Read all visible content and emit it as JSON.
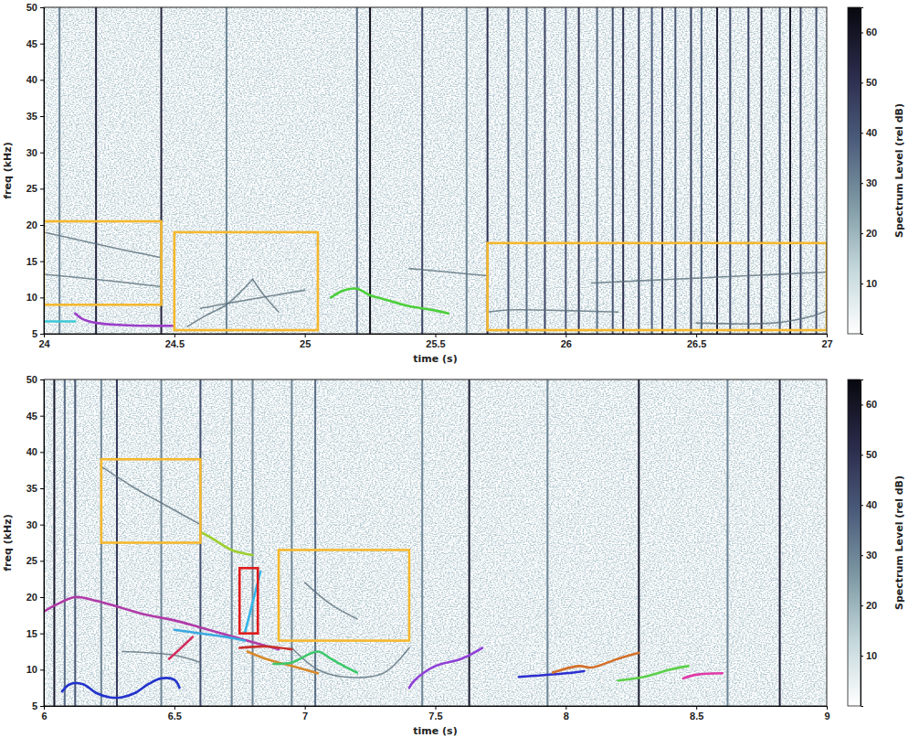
{
  "chart_data": [
    {
      "type": "spectrogram",
      "x_label": "time (s)",
      "y_label": "freq (kHz)",
      "xlim": [
        24,
        27
      ],
      "xticks": [
        24,
        24.5,
        25,
        25.5,
        26,
        26.5,
        27
      ],
      "ylim": [
        5,
        50
      ],
      "yticks": [
        5,
        10,
        15,
        20,
        25,
        30,
        35,
        40,
        45,
        50
      ],
      "colorbar": {
        "label": "Spectrum Level (rel dB)",
        "range": [
          0,
          65
        ],
        "ticks": [
          10,
          20,
          30,
          40,
          50,
          60
        ],
        "colors": [
          "#ffffff",
          "#c3d7db",
          "#7d98a3",
          "#4a5a7a",
          "#2a2a4a",
          "#08080f"
        ]
      },
      "clicks": {
        "times": [
          24.06,
          24.2,
          24.45,
          24.7,
          25.2,
          25.25,
          25.45,
          25.62,
          25.7,
          25.78,
          25.85,
          25.92,
          26.0,
          26.05,
          26.12,
          26.18,
          26.22,
          26.28,
          26.33,
          26.37,
          26.42,
          26.48,
          26.52,
          26.58,
          26.63,
          26.7,
          26.75,
          26.82,
          26.86,
          26.9,
          26.96
        ],
        "levels": [
          30,
          55,
          55,
          30,
          35,
          62,
          45,
          30,
          50,
          40,
          35,
          45,
          40,
          48,
          35,
          40,
          50,
          45,
          38,
          48,
          40,
          45,
          38,
          55,
          42,
          45,
          55,
          40,
          58,
          45,
          42
        ]
      },
      "series": [
        {
          "color": "#5a6f7c",
          "line_style": "faint",
          "x": [
            24,
            24.15,
            24.3,
            24.45
          ],
          "values": [
            19,
            17.8,
            16.6,
            15.5
          ]
        },
        {
          "color": "#5a6f7c",
          "line_style": "faint",
          "x": [
            24,
            24.2,
            24.45
          ],
          "values": [
            13.2,
            12.5,
            11.5
          ]
        },
        {
          "color": "#5a6f7c",
          "line_style": "faint",
          "x": [
            24.55,
            24.62,
            24.7,
            24.76,
            24.8
          ],
          "values": [
            6,
            7.5,
            9,
            11,
            12.5
          ]
        },
        {
          "color": "#5a6f7c",
          "line_style": "faint",
          "x": [
            24.8,
            24.85,
            24.9
          ],
          "values": [
            12.5,
            10,
            8
          ]
        },
        {
          "color": "#5a6f7c",
          "line_style": "faint",
          "x": [
            24.6,
            24.8,
            25.0
          ],
          "values": [
            8.5,
            9.8,
            11
          ]
        },
        {
          "color": "#5a6f7c",
          "line_style": "faint",
          "x": [
            25.7,
            25.8,
            26,
            26.2
          ],
          "values": [
            8,
            8.3,
            8.2,
            8
          ]
        },
        {
          "color": "#5a6f7c",
          "line_style": "faint",
          "x": [
            26.1,
            26.4,
            26.7,
            27
          ],
          "values": [
            12,
            12.5,
            13,
            13.5
          ]
        },
        {
          "color": "#5a6f7c",
          "line_style": "faint",
          "x": [
            26.5,
            26.8,
            26.95,
            27
          ],
          "values": [
            6.5,
            6.5,
            7.5,
            8.2
          ]
        },
        {
          "color": "#5a6f7c",
          "line_style": "faint",
          "x": [
            25.4,
            25.55,
            25.7
          ],
          "values": [
            14,
            13.5,
            13
          ]
        },
        {
          "color": "#3ec9d6",
          "line_style": "solid",
          "x": [
            24,
            24.06,
            24.12
          ],
          "values": [
            6.7,
            6.7,
            6.7
          ]
        },
        {
          "color": "#9b3fc9",
          "line_style": "solid",
          "x": [
            24.12,
            24.15,
            24.2,
            24.3,
            24.4,
            24.5
          ],
          "values": [
            7.8,
            7,
            6.5,
            6.2,
            6.1,
            6.1
          ]
        },
        {
          "color": "#4ccf3a",
          "line_style": "solid",
          "x": [
            25.1,
            25.15,
            25.2,
            25.25,
            25.3,
            25.4,
            25.5,
            25.55
          ],
          "values": [
            10,
            11,
            11.2,
            10.3,
            9.8,
            8.8,
            8.2,
            7.8
          ]
        }
      ],
      "boxes": [
        {
          "color": "#f5b82e",
          "x": [
            24.0,
            24.45
          ],
          "y": [
            9,
            20.5
          ]
        },
        {
          "color": "#f5b82e",
          "x": [
            24.5,
            25.05
          ],
          "y": [
            5.5,
            19
          ]
        },
        {
          "color": "#f5b82e",
          "x": [
            25.7,
            27.0
          ],
          "y": [
            5.5,
            17.5
          ]
        }
      ]
    },
    {
      "type": "spectrogram",
      "x_label": "time (s)",
      "y_label": "freq (kHz)",
      "xlim": [
        6,
        9
      ],
      "xticks": [
        6,
        6.5,
        7,
        7.5,
        8,
        8.5,
        9
      ],
      "ylim": [
        5,
        50
      ],
      "yticks": [
        5,
        10,
        15,
        20,
        25,
        30,
        35,
        40,
        45,
        50
      ],
      "colorbar": {
        "label": "Spectrum Level (rel dB)",
        "range": [
          0,
          65
        ],
        "ticks": [
          10,
          20,
          30,
          40,
          50,
          60
        ],
        "colors": [
          "#ffffff",
          "#c3d7db",
          "#7d98a3",
          "#4a5a7a",
          "#2a2a4a",
          "#08080f"
        ]
      },
      "clicks": {
        "times": [
          6.04,
          6.08,
          6.12,
          6.22,
          6.28,
          6.45,
          6.6,
          6.72,
          6.8,
          6.95,
          7.04,
          7.45,
          7.63,
          7.93,
          8.28,
          8.62,
          8.82
        ],
        "levels": [
          58,
          35,
          40,
          30,
          48,
          30,
          42,
          30,
          30,
          30,
          35,
          30,
          58,
          30,
          58,
          30,
          55
        ]
      },
      "series": [
        {
          "color": "#5a6f7c",
          "line_style": "faint",
          "x": [
            6.22,
            6.35,
            6.5,
            6.6
          ],
          "values": [
            38,
            35,
            32,
            30
          ]
        },
        {
          "color": "#5a6f7c",
          "line_style": "faint",
          "x": [
            6.95,
            7.05,
            7.15,
            7.3,
            7.4
          ],
          "values": [
            13,
            10,
            9,
            9.5,
            13
          ]
        },
        {
          "color": "#5a6f7c",
          "line_style": "faint",
          "x": [
            7,
            7.1,
            7.2
          ],
          "values": [
            22,
            19,
            17
          ]
        },
        {
          "color": "#5a6f7c",
          "line_style": "faint",
          "x": [
            6.3,
            6.5,
            6.6
          ],
          "values": [
            12.5,
            12,
            11
          ]
        },
        {
          "color": "#b03aa8",
          "line_style": "solid",
          "x": [
            6,
            6.05,
            6.12,
            6.2,
            6.3,
            6.4,
            6.5,
            6.6,
            6.7,
            6.8,
            6.9
          ],
          "values": [
            18,
            19,
            20,
            19.5,
            18.5,
            17.5,
            16.8,
            15.8,
            14.8,
            13.8,
            12.8
          ]
        },
        {
          "color": "#3aa8e0",
          "line_style": "solid",
          "x": [
            6.5,
            6.6,
            6.7,
            6.77
          ],
          "values": [
            15.5,
            15,
            14.5,
            14
          ]
        },
        {
          "color": "#35b6e8",
          "line_style": "solid",
          "x": [
            6.77,
            6.83
          ],
          "values": [
            15,
            23.5
          ]
        },
        {
          "color": "#d42a5a",
          "line_style": "solid",
          "x": [
            6.48,
            6.52,
            6.57
          ],
          "values": [
            11.5,
            12.8,
            14.5
          ]
        },
        {
          "color": "#2233cc",
          "line_style": "solid",
          "x": [
            6.07,
            6.1,
            6.15,
            6.2,
            6.25,
            6.3,
            6.35,
            6.4,
            6.45,
            6.5,
            6.52
          ],
          "values": [
            7,
            8,
            8,
            6.8,
            6.2,
            6.2,
            6.8,
            8,
            8.8,
            8.6,
            7.5
          ]
        },
        {
          "color": "#9ccf2e",
          "line_style": "solid",
          "x": [
            6.6,
            6.65,
            6.72,
            6.8
          ],
          "values": [
            29,
            28,
            26.5,
            25.8
          ]
        },
        {
          "color": "#c8302c",
          "line_style": "solid",
          "x": [
            6.75,
            6.85,
            6.95
          ],
          "values": [
            13,
            13.2,
            12.8
          ]
        },
        {
          "color": "#d88a2a",
          "line_style": "solid",
          "x": [
            6.78,
            6.85,
            6.95,
            7.05
          ],
          "values": [
            12.5,
            11.5,
            10.5,
            9.5
          ]
        },
        {
          "color": "#3cc86a",
          "line_style": "solid",
          "x": [
            6.88,
            6.95,
            7.05,
            7.1,
            7.15,
            7.2
          ],
          "values": [
            10.8,
            11,
            12.5,
            11.5,
            10.5,
            9.6
          ]
        },
        {
          "color": "#8f3fd6",
          "line_style": "solid",
          "x": [
            7.4,
            7.42,
            7.5,
            7.6,
            7.68
          ],
          "values": [
            7.5,
            8.5,
            10.5,
            11.5,
            13
          ]
        },
        {
          "color": "#2d2fd0",
          "line_style": "solid",
          "x": [
            7.82,
            7.9,
            8.0,
            8.07
          ],
          "values": [
            9,
            9.2,
            9.5,
            9.8
          ]
        },
        {
          "color": "#d2702a",
          "line_style": "solid",
          "x": [
            7.95,
            8.05,
            8.1,
            8.2,
            8.28
          ],
          "values": [
            9.6,
            10.5,
            10.3,
            11.5,
            12.3
          ]
        },
        {
          "color": "#5dd04a",
          "line_style": "solid",
          "x": [
            8.2,
            8.3,
            8.4,
            8.47
          ],
          "values": [
            8.5,
            9,
            10,
            10.5
          ]
        },
        {
          "color": "#e03aa8",
          "line_style": "solid",
          "x": [
            8.45,
            8.5,
            8.6
          ],
          "values": [
            8.8,
            9.3,
            9.5
          ]
        }
      ],
      "boxes": [
        {
          "color": "#f5b82e",
          "x": [
            6.22,
            6.6
          ],
          "y": [
            27.5,
            39
          ]
        },
        {
          "color": "#f5b82e",
          "x": [
            6.9,
            7.4
          ],
          "y": [
            14,
            26.5
          ]
        },
        {
          "color": "#e01b1b",
          "x": [
            6.75,
            6.82
          ],
          "y": [
            15,
            24
          ]
        }
      ]
    }
  ]
}
